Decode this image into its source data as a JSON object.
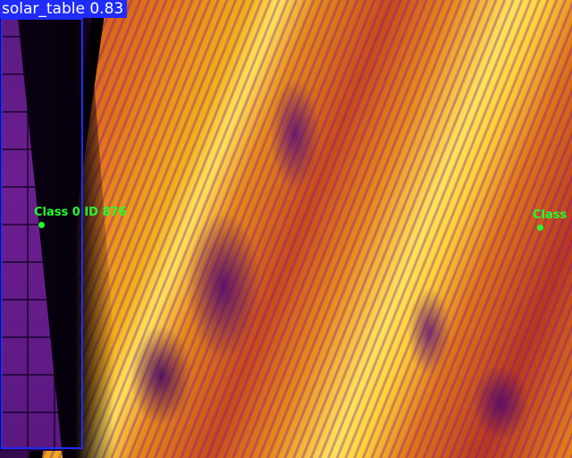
{
  "image": {
    "description_type": "thermal aerial image with detection overlays",
    "colors": {
      "bbox": "#1f2bff",
      "track_label": "#22ff33"
    }
  },
  "detection": {
    "label": "solar_table 0.83"
  },
  "tracks": [
    {
      "label": "Class 0 ID 876"
    },
    {
      "label": "Class"
    }
  ]
}
